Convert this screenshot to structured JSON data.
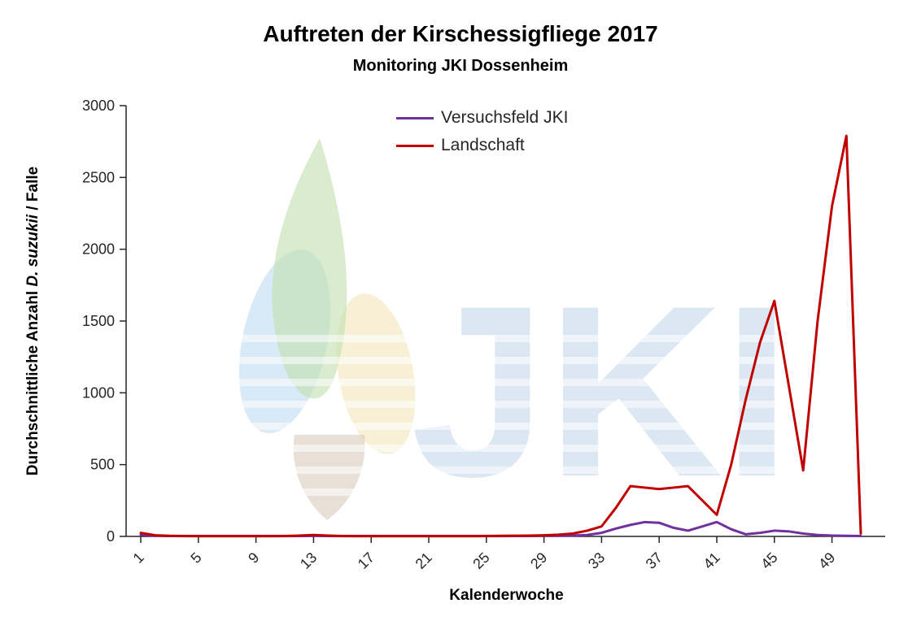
{
  "chart_data": {
    "type": "line",
    "title": "Auftreten der Kirschessigfliege 2017",
    "subtitle": "Monitoring JKI Dossenheim",
    "xlabel": "Kalenderwoche",
    "ylabel": "Durchschnittliche Anzahl D. suzukii / Falle",
    "ylabel_parts": {
      "prefix": "Durchschnittliche Anzahl ",
      "italic": "D. suzukii",
      "suffix": " / Falle"
    },
    "xlim": [
      1,
      52
    ],
    "ylim": [
      0,
      3000
    ],
    "xticks": [
      1,
      5,
      9,
      13,
      17,
      21,
      25,
      29,
      33,
      37,
      41,
      45,
      49
    ],
    "yticks": [
      0,
      500,
      1000,
      1500,
      2000,
      2500,
      3000
    ],
    "grid": false,
    "legend_position": "top-center",
    "x": [
      1,
      2,
      3,
      4,
      5,
      6,
      7,
      8,
      9,
      10,
      11,
      12,
      13,
      14,
      15,
      16,
      17,
      18,
      19,
      20,
      21,
      22,
      23,
      24,
      25,
      26,
      27,
      28,
      29,
      30,
      31,
      32,
      33,
      34,
      35,
      36,
      37,
      38,
      39,
      40,
      41,
      42,
      43,
      44,
      45,
      46,
      47,
      48,
      49,
      50,
      51
    ],
    "series": [
      {
        "name": "Versuchsfeld JKI",
        "color": "#7030A0",
        "values": [
          12,
          5,
          3,
          2,
          2,
          2,
          2,
          2,
          2,
          2,
          2,
          3,
          4,
          3,
          2,
          2,
          2,
          2,
          2,
          2,
          2,
          2,
          2,
          2,
          2,
          2,
          3,
          3,
          4,
          5,
          6,
          10,
          25,
          55,
          80,
          100,
          95,
          60,
          40,
          70,
          100,
          50,
          15,
          25,
          40,
          35,
          20,
          10,
          6,
          4,
          3
        ]
      },
      {
        "name": "Landschaft",
        "color": "#C00000",
        "values": [
          25,
          8,
          4,
          3,
          2,
          2,
          2,
          2,
          2,
          2,
          3,
          6,
          10,
          6,
          3,
          2,
          2,
          2,
          2,
          2,
          2,
          2,
          2,
          2,
          3,
          4,
          5,
          6,
          8,
          12,
          20,
          40,
          70,
          200,
          350,
          340,
          330,
          340,
          350,
          250,
          150,
          500,
          950,
          1350,
          1640,
          1050,
          460,
          1500,
          2300,
          2790,
          20
        ]
      }
    ]
  },
  "watermark": {
    "text": "JKI"
  }
}
